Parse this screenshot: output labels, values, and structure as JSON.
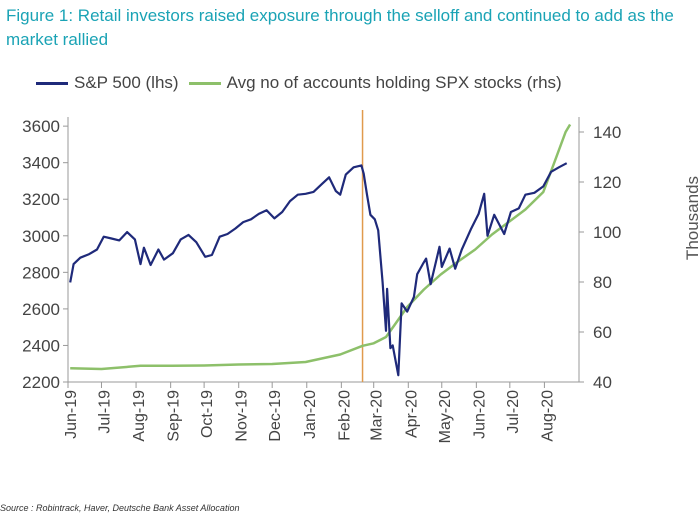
{
  "title": "Figure 1: Retail investors raised exposure through the selloff and continued to add as the market rallied",
  "source": "Source : Robintrack, Haver, Deutsche Bank Asset Allocation",
  "chart_data": {
    "type": "line",
    "title": "Figure 1: Retail investors raised exposure through the selloff and continued to add as the market rallied",
    "x_start": "2019-06",
    "x_end": "2020-08",
    "x_ticks": [
      "Jun-19",
      "Jul-19",
      "Aug-19",
      "Sep-19",
      "Oct-19",
      "Nov-19",
      "Dec-19",
      "Jan-20",
      "Feb-20",
      "Mar-20",
      "Apr-20",
      "May-20",
      "Jun-20",
      "Jul-20",
      "Aug-20"
    ],
    "y_left": {
      "ylim": [
        2200,
        3650
      ],
      "ticks": [
        2200,
        2400,
        2600,
        2800,
        3000,
        3200,
        3400,
        3600
      ]
    },
    "y_right": {
      "label": "Thousands",
      "ylim": [
        40,
        146
      ],
      "ticks": [
        40,
        60,
        80,
        100,
        120,
        140
      ]
    },
    "vline_date": "2020-02-20",
    "legend_position": "top",
    "grid": false,
    "series": [
      {
        "name": "S&P 500 (lhs)",
        "axis": "left",
        "color": "#1f2a7a",
        "points": [
          [
            "2019-06-03",
            2745
          ],
          [
            "2019-06-06",
            2845
          ],
          [
            "2019-06-12",
            2880
          ],
          [
            "2019-06-20",
            2900
          ],
          [
            "2019-06-27",
            2925
          ],
          [
            "2019-07-03",
            2995
          ],
          [
            "2019-07-10",
            2985
          ],
          [
            "2019-07-17",
            2975
          ],
          [
            "2019-07-24",
            3020
          ],
          [
            "2019-07-31",
            2980
          ],
          [
            "2019-08-05",
            2845
          ],
          [
            "2019-08-08",
            2935
          ],
          [
            "2019-08-14",
            2840
          ],
          [
            "2019-08-21",
            2925
          ],
          [
            "2019-08-26",
            2870
          ],
          [
            "2019-09-03",
            2905
          ],
          [
            "2019-09-10",
            2980
          ],
          [
            "2019-09-17",
            3005
          ],
          [
            "2019-09-24",
            2965
          ],
          [
            "2019-10-02",
            2885
          ],
          [
            "2019-10-08",
            2895
          ],
          [
            "2019-10-15",
            2995
          ],
          [
            "2019-10-22",
            3010
          ],
          [
            "2019-10-29",
            3040
          ],
          [
            "2019-11-05",
            3075
          ],
          [
            "2019-11-12",
            3090
          ],
          [
            "2019-11-19",
            3120
          ],
          [
            "2019-11-26",
            3140
          ],
          [
            "2019-12-03",
            3095
          ],
          [
            "2019-12-10",
            3130
          ],
          [
            "2019-12-17",
            3190
          ],
          [
            "2019-12-24",
            3225
          ],
          [
            "2019-12-31",
            3230
          ],
          [
            "2020-01-07",
            3240
          ],
          [
            "2020-01-14",
            3280
          ],
          [
            "2020-01-21",
            3320
          ],
          [
            "2020-01-27",
            3245
          ],
          [
            "2020-01-31",
            3225
          ],
          [
            "2020-02-05",
            3335
          ],
          [
            "2020-02-12",
            3375
          ],
          [
            "2020-02-19",
            3385
          ],
          [
            "2020-02-21",
            3340
          ],
          [
            "2020-02-24",
            3225
          ],
          [
            "2020-02-27",
            3115
          ],
          [
            "2020-03-02",
            3090
          ],
          [
            "2020-03-05",
            3030
          ],
          [
            "2020-03-09",
            2745
          ],
          [
            "2020-03-12",
            2480
          ],
          [
            "2020-03-13",
            2710
          ],
          [
            "2020-03-16",
            2385
          ],
          [
            "2020-03-18",
            2400
          ],
          [
            "2020-03-23",
            2237
          ],
          [
            "2020-03-26",
            2630
          ],
          [
            "2020-03-31",
            2585
          ],
          [
            "2020-04-06",
            2665
          ],
          [
            "2020-04-09",
            2790
          ],
          [
            "2020-04-14",
            2845
          ],
          [
            "2020-04-17",
            2875
          ],
          [
            "2020-04-21",
            2735
          ],
          [
            "2020-04-29",
            2940
          ],
          [
            "2020-05-01",
            2830
          ],
          [
            "2020-05-08",
            2930
          ],
          [
            "2020-05-13",
            2820
          ],
          [
            "2020-05-19",
            2925
          ],
          [
            "2020-05-27",
            3035
          ],
          [
            "2020-06-03",
            3120
          ],
          [
            "2020-06-08",
            3230
          ],
          [
            "2020-06-11",
            3000
          ],
          [
            "2020-06-17",
            3115
          ],
          [
            "2020-06-26",
            3010
          ],
          [
            "2020-07-02",
            3130
          ],
          [
            "2020-07-09",
            3150
          ],
          [
            "2020-07-15",
            3225
          ],
          [
            "2020-07-23",
            3235
          ],
          [
            "2020-07-31",
            3270
          ],
          [
            "2020-08-07",
            3350
          ],
          [
            "2020-08-14",
            3375
          ],
          [
            "2020-08-21",
            3397
          ]
        ]
      },
      {
        "name": "Avg no of accounts holding SPX stocks (rhs)",
        "axis": "right",
        "color": "#8dc06a",
        "points": [
          [
            "2019-06-03",
            45.5
          ],
          [
            "2019-07-01",
            45.2
          ],
          [
            "2019-08-05",
            46.5
          ],
          [
            "2019-09-02",
            46.5
          ],
          [
            "2019-10-01",
            46.6
          ],
          [
            "2019-11-01",
            47
          ],
          [
            "2019-12-01",
            47.2
          ],
          [
            "2019-12-31",
            48
          ],
          [
            "2020-01-31",
            51
          ],
          [
            "2020-02-20",
            54.5
          ],
          [
            "2020-03-01",
            55.5
          ],
          [
            "2020-03-12",
            58
          ],
          [
            "2020-03-20",
            63
          ],
          [
            "2020-03-31",
            70
          ],
          [
            "2020-04-15",
            77
          ],
          [
            "2020-04-30",
            83
          ],
          [
            "2020-05-15",
            88
          ],
          [
            "2020-05-31",
            93
          ],
          [
            "2020-06-15",
            99
          ],
          [
            "2020-06-30",
            104
          ],
          [
            "2020-07-15",
            109
          ],
          [
            "2020-07-31",
            116
          ],
          [
            "2020-08-10",
            128
          ],
          [
            "2020-08-20",
            140
          ],
          [
            "2020-08-24",
            143
          ]
        ]
      }
    ]
  }
}
